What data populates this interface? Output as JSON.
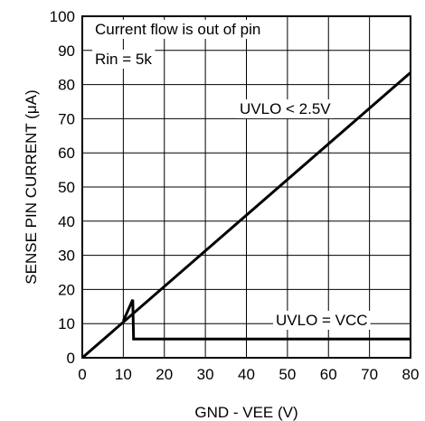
{
  "chart_data": {
    "type": "line",
    "xlabel": "GND - VEE (V)",
    "ylabel": "SENSE PIN CURRENT (μA)",
    "xlim": [
      0,
      80
    ],
    "ylim": [
      0,
      100
    ],
    "x_ticks": [
      "0",
      "10",
      "20",
      "30",
      "40",
      "50",
      "60",
      "70",
      "80"
    ],
    "y_ticks": [
      "0",
      "10",
      "20",
      "30",
      "40",
      "50",
      "60",
      "70",
      "80",
      "90",
      "100"
    ],
    "grid": true,
    "annotations": [
      {
        "text": "Current flow is out of pin"
      },
      {
        "text": "Rin = 5k"
      }
    ],
    "series": [
      {
        "name": "UVLO < 2.5V",
        "points": [
          [
            0,
            0
          ],
          [
            80,
            83.5
          ]
        ]
      },
      {
        "name": "UVLO = VCC",
        "points": [
          [
            10,
            10.8
          ],
          [
            12.3,
            17
          ],
          [
            12.5,
            5.5
          ],
          [
            80,
            5.5
          ]
        ]
      }
    ]
  }
}
